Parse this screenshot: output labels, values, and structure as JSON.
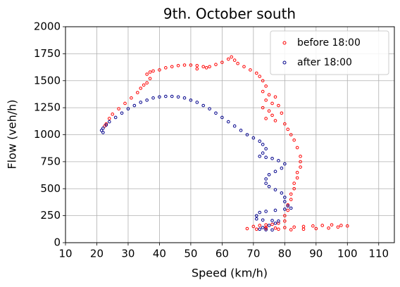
{
  "chart_data": {
    "type": "scatter",
    "title": "9th. October south",
    "xlabel": "Speed (km/h)",
    "ylabel": "Flow (veh/h)",
    "xlim": [
      10,
      115
    ],
    "xticks": [
      10,
      20,
      30,
      40,
      50,
      60,
      70,
      80,
      90,
      100,
      110
    ],
    "ylim": [
      0,
      2000
    ],
    "yticks": [
      0,
      250,
      500,
      750,
      1000,
      1250,
      1500,
      1750,
      2000
    ],
    "grid": true,
    "legend": "upper right",
    "series": [
      {
        "name": "before 18:00",
        "color": "#ff0000",
        "x": [
          22.5,
          23,
          24,
          25,
          27,
          29,
          31,
          33,
          34,
          35,
          36,
          37,
          36,
          37,
          38,
          40,
          42,
          44,
          46,
          48,
          50,
          52,
          54,
          55,
          52,
          56,
          58,
          60,
          62,
          63,
          64,
          65,
          67,
          69,
          71,
          72,
          73,
          74,
          73,
          75,
          77,
          74,
          76,
          78,
          73,
          75,
          79,
          76,
          74,
          77,
          80,
          81,
          82,
          83,
          84,
          85,
          85,
          85,
          84,
          84,
          83,
          83,
          82,
          82,
          81,
          81,
          80,
          80,
          78,
          76,
          74,
          72,
          70,
          68,
          71,
          74,
          77,
          80,
          83,
          86,
          89,
          92,
          95,
          98,
          100,
          97,
          94,
          90,
          86,
          82,
          78,
          74
        ],
        "values": [
          1080,
          1100,
          1150,
          1190,
          1240,
          1290,
          1340,
          1390,
          1430,
          1460,
          1480,
          1520,
          1560,
          1580,
          1590,
          1600,
          1620,
          1630,
          1640,
          1645,
          1645,
          1640,
          1630,
          1620,
          1610,
          1630,
          1650,
          1670,
          1700,
          1720,
          1690,
          1660,
          1630,
          1600,
          1570,
          1540,
          1500,
          1450,
          1400,
          1370,
          1350,
          1320,
          1290,
          1270,
          1250,
          1220,
          1200,
          1180,
          1150,
          1130,
          1100,
          1050,
          1000,
          950,
          880,
          800,
          750,
          700,
          650,
          600,
          550,
          500,
          450,
          400,
          350,
          300,
          250,
          200,
          180,
          170,
          165,
          160,
          150,
          130,
          125,
          130,
          135,
          140,
          145,
          150,
          155,
          160,
          165,
          160,
          155,
          145,
          135,
          130,
          125,
          120,
          125,
          140
        ]
      },
      {
        "name": "after 18:00",
        "color": "#00008b",
        "x": [
          22,
          21.5,
          22,
          23,
          24,
          26,
          28,
          30,
          32,
          34,
          36,
          38,
          40,
          42,
          44,
          46,
          48,
          50,
          52,
          54,
          56,
          58,
          60,
          62,
          64,
          66,
          68,
          70,
          72,
          73,
          74,
          73,
          72,
          74,
          76,
          78,
          80,
          79,
          77,
          75,
          74,
          74,
          75,
          77,
          79,
          80,
          80,
          81,
          82,
          80,
          77,
          74,
          72,
          71,
          71,
          73,
          76,
          78,
          77,
          75,
          73,
          72,
          74,
          76
        ],
        "values": [
          1020,
          1040,
          1060,
          1090,
          1120,
          1160,
          1200,
          1240,
          1270,
          1300,
          1320,
          1340,
          1350,
          1355,
          1355,
          1350,
          1340,
          1320,
          1300,
          1270,
          1240,
          1200,
          1160,
          1120,
          1080,
          1040,
          1000,
          970,
          940,
          910,
          870,
          830,
          800,
          790,
          780,
          760,
          730,
          690,
          660,
          630,
          590,
          550,
          520,
          490,
          460,
          420,
          380,
          340,
          320,
          310,
          300,
          290,
          280,
          250,
          220,
          210,
          205,
          200,
          180,
          160,
          140,
          125,
          120,
          118
        ]
      }
    ]
  }
}
